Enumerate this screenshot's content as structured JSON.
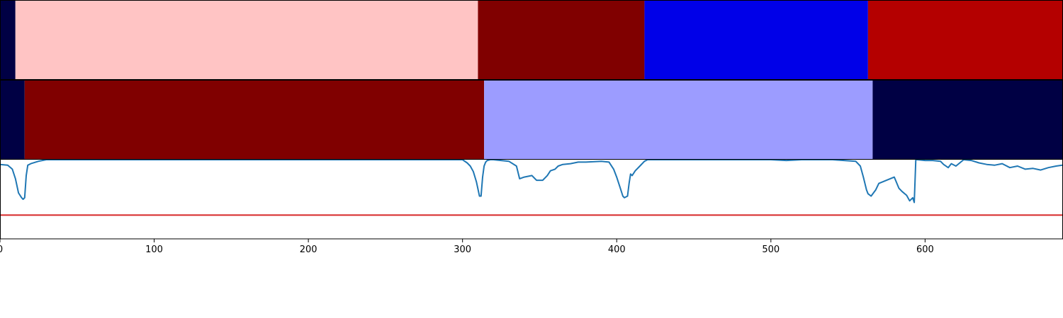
{
  "chart_data": {
    "type": "heatmap+line",
    "xlim": [
      0,
      689
    ],
    "x_ticks": [
      0,
      100,
      200,
      300,
      400,
      500,
      600
    ],
    "x_tick_labels": [
      "0",
      "100",
      "200",
      "300",
      "400",
      "500",
      "600"
    ],
    "segment_tracks": [
      {
        "segments": [
          {
            "start": 0,
            "end": 10,
            "color": "#000044"
          },
          {
            "start": 10,
            "end": 310,
            "color": "#ffc4c4"
          },
          {
            "start": 310,
            "end": 418,
            "color": "#800000"
          },
          {
            "start": 418,
            "end": 563,
            "color": "#0000e8"
          },
          {
            "start": 563,
            "end": 689,
            "color": "#b40000"
          }
        ]
      },
      {
        "segments": [
          {
            "start": 0,
            "end": 16,
            "color": "#000044"
          },
          {
            "start": 16,
            "end": 314,
            "color": "#800000"
          },
          {
            "start": 314,
            "end": 566,
            "color": "#9c9cff"
          },
          {
            "start": 566,
            "end": 689,
            "color": "#000044"
          }
        ]
      }
    ],
    "line_panel": {
      "ylim": [
        0,
        1
      ],
      "series": [
        {
          "color": "#1f77b4",
          "x": [
            0,
            5,
            8,
            10,
            12,
            14,
            15,
            16,
            17,
            18,
            20,
            25,
            30,
            60,
            100,
            200,
            240,
            250,
            280,
            290,
            300,
            303,
            305,
            307,
            309,
            311,
            312,
            313,
            314,
            315,
            316,
            318,
            320,
            330,
            335,
            337,
            340,
            345,
            348,
            352,
            355,
            357,
            360,
            362,
            365,
            370,
            375,
            380,
            390,
            395,
            398,
            400,
            402,
            404,
            405,
            407,
            408,
            409,
            410,
            412,
            415,
            418,
            420,
            425,
            500,
            510,
            520,
            540,
            555,
            558,
            560,
            562,
            563,
            565,
            568,
            570,
            575,
            580,
            583,
            585,
            588,
            590,
            592,
            593,
            594,
            595,
            600,
            605,
            610,
            612,
            615,
            617,
            620,
            625,
            630,
            635,
            640,
            645,
            650,
            655,
            660,
            665,
            670,
            675,
            680,
            685,
            689
          ],
          "y": [
            0.94,
            0.93,
            0.88,
            0.76,
            0.58,
            0.52,
            0.5,
            0.52,
            0.8,
            0.93,
            0.95,
            0.98,
            1.0,
            1.0,
            1.0,
            1.0,
            1.0,
            1.0,
            1.0,
            1.0,
            1.0,
            0.96,
            0.92,
            0.85,
            0.72,
            0.54,
            0.54,
            0.78,
            0.92,
            0.97,
            0.99,
            1.0,
            1.0,
            0.98,
            0.92,
            0.76,
            0.78,
            0.8,
            0.74,
            0.74,
            0.8,
            0.86,
            0.88,
            0.92,
            0.94,
            0.95,
            0.97,
            0.97,
            0.98,
            0.97,
            0.88,
            0.78,
            0.66,
            0.54,
            0.52,
            0.54,
            0.7,
            0.82,
            0.8,
            0.86,
            0.92,
            0.98,
            1.0,
            1.0,
            1.0,
            0.99,
            1.0,
            1.0,
            0.98,
            0.92,
            0.78,
            0.62,
            0.57,
            0.54,
            0.62,
            0.7,
            0.74,
            0.78,
            0.64,
            0.6,
            0.55,
            0.48,
            0.52,
            0.46,
            1.0,
            1.0,
            0.99,
            0.99,
            0.98,
            0.94,
            0.9,
            0.95,
            0.92,
            1.0,
            0.99,
            0.96,
            0.94,
            0.93,
            0.95,
            0.9,
            0.92,
            0.88,
            0.89,
            0.87,
            0.9,
            0.92,
            0.93
          ]
        },
        {
          "color": "#d62728",
          "x": [
            0,
            689
          ],
          "y": [
            0.3,
            0.3
          ]
        }
      ]
    }
  }
}
